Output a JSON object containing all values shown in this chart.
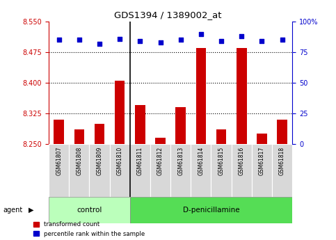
{
  "title": "GDS1394 / 1389002_at",
  "samples": [
    "GSM61807",
    "GSM61808",
    "GSM61809",
    "GSM61810",
    "GSM61811",
    "GSM61812",
    "GSM61813",
    "GSM61814",
    "GSM61815",
    "GSM61816",
    "GSM61817",
    "GSM61818"
  ],
  "red_values": [
    8.31,
    8.285,
    8.3,
    8.405,
    8.345,
    8.265,
    8.34,
    8.485,
    8.285,
    8.485,
    8.275,
    8.31
  ],
  "blue_values": [
    85,
    85,
    82,
    86,
    84,
    83,
    85,
    90,
    84,
    88,
    84,
    85
  ],
  "ylim_left": [
    8.25,
    8.55
  ],
  "ylim_right": [
    0,
    100
  ],
  "yticks_left": [
    8.25,
    8.325,
    8.4,
    8.475,
    8.55
  ],
  "yticks_right": [
    0,
    25,
    50,
    75,
    100
  ],
  "grid_lines": [
    8.325,
    8.4,
    8.475
  ],
  "control_samples": 4,
  "control_label": "control",
  "treatment_label": "D-penicillamine",
  "agent_label": "agent",
  "legend_red": "transformed count",
  "legend_blue": "percentile rank within the sample",
  "bar_color": "#cc0000",
  "dot_color": "#0000cc",
  "control_bg": "#bbffbb",
  "treatment_bg": "#55dd55",
  "bar_width": 0.5,
  "baseline": 8.25
}
